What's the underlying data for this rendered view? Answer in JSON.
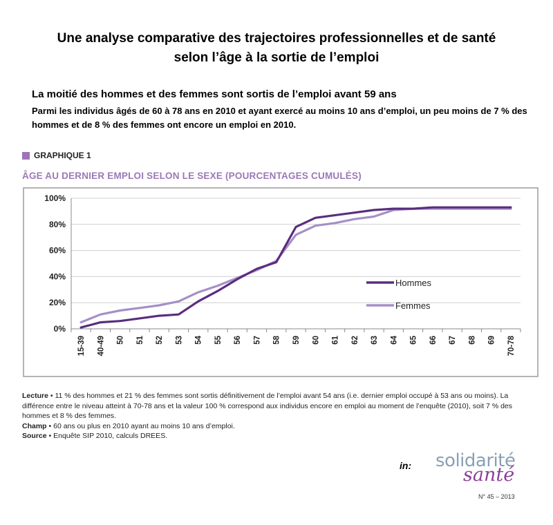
{
  "header": {
    "title_line1": "Une analyse comparative des trajectoires professionnelles et de santé",
    "title_line2": "selon l’âge à la sortie de l’emploi",
    "subhead": "La moitié des hommes et des femmes sont sortis de l’emploi avant 59 ans",
    "intro": "Parmi les individus âgés de 60 à 78 ans en 2010 et ayant exercé au moins 10 ans d’emploi, un peu moins de 7 % des hommes et de 8 % des femmes ont encore un emploi en 2010."
  },
  "graph": {
    "label": "GRAPHIQUE 1",
    "title": "ÂGE AU DERNIER EMPLOI SELON LE SEXE (POURCENTAGES CUMULÉS)"
  },
  "chart_data": {
    "type": "line",
    "categories": [
      "15-39",
      "40-49",
      "50",
      "51",
      "52",
      "53",
      "54",
      "55",
      "56",
      "57",
      "58",
      "59",
      "60",
      "61",
      "62",
      "63",
      "64",
      "65",
      "66",
      "67",
      "68",
      "69",
      "70-78"
    ],
    "series": [
      {
        "name": "Hommes",
        "color": "#5a2d7e",
        "values": [
          1,
          5,
          6,
          8,
          10,
          11,
          21,
          29,
          38,
          46,
          51,
          78,
          85,
          87,
          89,
          91,
          92,
          92,
          93,
          93,
          93,
          93,
          93
        ]
      },
      {
        "name": "Femmes",
        "color": "#a58fc7",
        "values": [
          5,
          11,
          14,
          16,
          18,
          21,
          28,
          33,
          39,
          45,
          52,
          72,
          79,
          81,
          84,
          86,
          91,
          92,
          92,
          92,
          92,
          92,
          92
        ]
      }
    ],
    "y_ticks": [
      "0%",
      "20%",
      "40%",
      "60%",
      "80%",
      "100%"
    ],
    "ylim": [
      0,
      100
    ],
    "grid": true,
    "legend_position": "center-right"
  },
  "notes": {
    "lecture_label": "Lecture",
    "lecture": "• 11 % des hommes et 21 % des femmes sont sortis définitivement de l’emploi avant 54 ans (i.e. dernier emploi occupé à 53 ans ou moins). La différence entre le niveau atteint à 70-78 ans et la valeur 100 % correspond aux individus encore en emploi au moment de l’enquête (2010), soit 7 % des hommes et 8 % des femmes.",
    "champ_label": "Champ",
    "champ": "• 60 ans ou plus en 2010 ayant au moins 10 ans d’emploi.",
    "source_label": "Source",
    "source": "• Enquête SIP 2010, calculs DREES."
  },
  "footer": {
    "in_label": "in:",
    "logo_line1": "solidarité",
    "logo_line2": "santé",
    "issue": "N° 45 – 2013"
  }
}
